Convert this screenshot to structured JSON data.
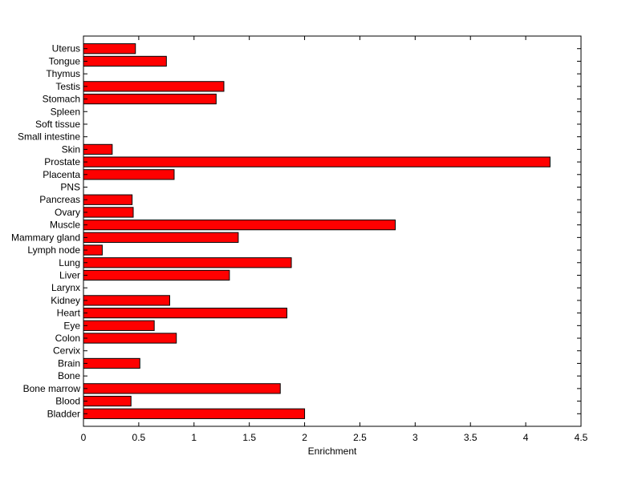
{
  "chart_data": {
    "type": "bar",
    "orientation": "horizontal",
    "categories": [
      "Bladder",
      "Blood",
      "Bone marrow",
      "Bone",
      "Brain",
      "Cervix",
      "Colon",
      "Eye",
      "Heart",
      "Kidney",
      "Larynx",
      "Liver",
      "Lung",
      "Lymph node",
      "Mammary gland",
      "Muscle",
      "Ovary",
      "Pancreas",
      "PNS",
      "Placenta",
      "Prostate",
      "Skin",
      "Small intestine",
      "Soft tissue",
      "Spleen",
      "Stomach",
      "Testis",
      "Thymus",
      "Tongue",
      "Uterus"
    ],
    "values": [
      2.0,
      0.43,
      1.78,
      0,
      0.51,
      0,
      0.84,
      0.64,
      1.84,
      0.78,
      0,
      1.32,
      1.88,
      0.17,
      1.4,
      2.82,
      0.45,
      0.44,
      0,
      0.82,
      4.22,
      0.26,
      0,
      0,
      0,
      1.2,
      1.27,
      0,
      0.75,
      0.47
    ],
    "xlabel": "Enrichment",
    "ylabel": "",
    "title": "",
    "xlim": [
      0,
      4.5
    ],
    "xticks": [
      "0",
      "0.5",
      "1",
      "1.5",
      "2",
      "2.5",
      "3",
      "3.5",
      "4",
      "4.5"
    ],
    "bar_color": "#ff0000",
    "bar_edge_color": "#000000",
    "grid": false
  }
}
